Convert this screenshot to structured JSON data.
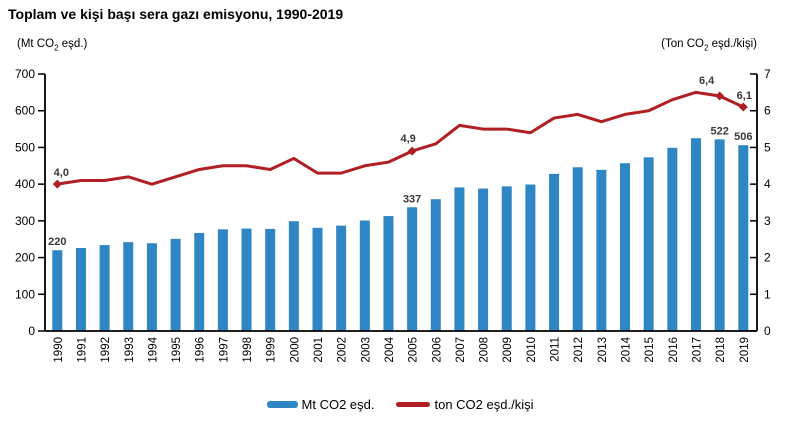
{
  "title": "Toplam ve kişi başı sera gazı emisyonu, 1990-2019",
  "left_axis_unit": {
    "pre": "(Mt CO",
    "sub": "2",
    "post": " eşd.)"
  },
  "right_axis_unit": {
    "pre": "(Ton CO",
    "sub": "2",
    "post": " eşd./kişi)"
  },
  "legend": {
    "bars": "Mt CO2 eşd.",
    "line": "ton CO2 eşd./kişi"
  },
  "colors": {
    "bar": "#2f86c4",
    "line": "#b01f24",
    "axis": "#000000",
    "tick_label": "#000000",
    "data_label": "#3a3a3a"
  },
  "chart_data": {
    "type": "bar+line",
    "title": "Toplam ve kişi başı sera gazı emisyonu, 1990-2019",
    "categories": [
      "1990",
      "1991",
      "1992",
      "1993",
      "1994",
      "1995",
      "1996",
      "1997",
      "1998",
      "1999",
      "2000",
      "2001",
      "2002",
      "2003",
      "2004",
      "2005",
      "2006",
      "2007",
      "2008",
      "2009",
      "2010",
      "2011",
      "2012",
      "2013",
      "2014",
      "2015",
      "2016",
      "2017",
      "2018",
      "2019"
    ],
    "series": [
      {
        "name": "Mt CO2 eşd.",
        "type": "bar",
        "axis": "left",
        "values": [
          220,
          226,
          234,
          242,
          239,
          251,
          267,
          277,
          279,
          278,
          299,
          281,
          287,
          301,
          313,
          337,
          359,
          391,
          388,
          394,
          399,
          428,
          446,
          439,
          457,
          473,
          499,
          525,
          522,
          506
        ]
      },
      {
        "name": "ton CO2 eşd./kişi",
        "type": "line",
        "axis": "right",
        "values": [
          4.0,
          4.1,
          4.1,
          4.2,
          4.0,
          4.2,
          4.4,
          4.5,
          4.5,
          4.4,
          4.7,
          4.3,
          4.3,
          4.5,
          4.6,
          4.9,
          5.1,
          5.6,
          5.5,
          5.5,
          5.4,
          5.8,
          5.9,
          5.7,
          5.9,
          6.0,
          6.3,
          6.5,
          6.4,
          6.1
        ]
      }
    ],
    "left_axis": {
      "label": "(Mt CO2 eşd.)",
      "min": 0,
      "max": 700,
      "step": 100
    },
    "right_axis": {
      "label": "(Ton CO2 eşd./kişi)",
      "min": 0,
      "max": 7,
      "step": 1
    },
    "grid": false,
    "legend_position": "bottom",
    "annotations": {
      "bar_labels": [
        {
          "year": "1990",
          "text": "220"
        },
        {
          "year": "2005",
          "text": "337"
        },
        {
          "year": "2018",
          "text": "522"
        },
        {
          "year": "2019",
          "text": "506"
        }
      ],
      "line_labels": [
        {
          "year": "1990",
          "text": "4,0"
        },
        {
          "year": "2005",
          "text": "4,9"
        },
        {
          "year": "2018",
          "text": "6,4"
        },
        {
          "year": "2019",
          "text": "6,1"
        }
      ],
      "marker_years": [
        "1990",
        "2005",
        "2018",
        "2019"
      ]
    }
  }
}
